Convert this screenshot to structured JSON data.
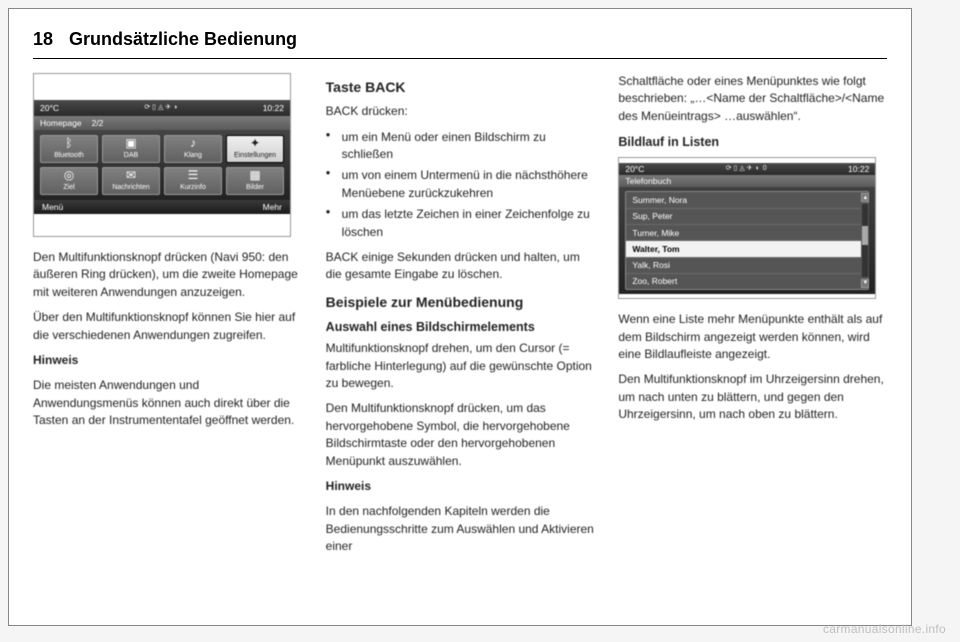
{
  "header": {
    "page_number": "18",
    "section": "Grundsätzliche Bedienung"
  },
  "watermark": "carmanualsonline.info",
  "col1": {
    "screen": {
      "status_temp": "20°C",
      "status_time": "10:22",
      "title": "Homepage",
      "pager": "2/2",
      "tiles": [
        {
          "icon": "ᛒ",
          "label": "Bluetooth"
        },
        {
          "icon": "▣",
          "label": "DAB"
        },
        {
          "icon": "♪",
          "label": "Klang"
        },
        {
          "icon": "✦",
          "label": "Einstellungen",
          "selected": true
        },
        {
          "icon": "◎",
          "label": "Ziel"
        },
        {
          "icon": "✉",
          "label": "Nachrichten"
        },
        {
          "icon": "☰",
          "label": "Kurzinfo"
        },
        {
          "icon": "▦",
          "label": "Bilder"
        }
      ],
      "footer_left": "Menü",
      "footer_right": "Mehr"
    },
    "p1": "Den Multifunktionsknopf drücken (Navi 950: den äußeren Ring drücken), um die zweite Homepage mit weiteren Anwendungen anzuzeigen.",
    "p2": "Über den Multifunktionsknopf können Sie hier auf die verschiedenen Anwendungen zugreifen.",
    "note_label": "Hinweis",
    "note_body": "Die meisten Anwendungen und Anwendungsmenüs können auch direkt über die Tasten an der Instrumententafel geöffnet werden."
  },
  "col2": {
    "h_back": "Taste BACK",
    "back_lead": "BACK drücken:",
    "back_items": [
      "um ein Menü oder einen Bildschirm zu schließen",
      "um von einem Untermenü in die nächsthöhere Menüebene zurückzukehren",
      "um das letzte Zeichen in einer Zeichenfolge zu löschen"
    ],
    "back_hold": "BACK einige Sekunden drücken und halten, um die gesamte Eingabe zu löschen.",
    "h_examples": "Beispiele zur Menübedienung",
    "h_select": "Auswahl eines Bildschirmelements",
    "p_sel1": "Multifunktionsknopf drehen, um den Cursor (= farbliche Hinterlegung) auf die gewünschte Option zu bewegen.",
    "p_sel2": "Den Multifunktionsknopf drücken, um das hervorgehobene Symbol, die hervorgehobene Bildschirmtaste oder den hervorgehobenen Menüpunkt auszuwählen.",
    "note_label": "Hinweis",
    "note_body": "In den nachfolgenden Kapiteln werden die Bedienungsschritte zum Auswählen und Aktivieren einer"
  },
  "col3": {
    "cont": "Schaltfläche oder eines Menüpunktes wie folgt beschrieben: „…<Name der Schaltfläche>/<Name des Menüeintrags> …auswählen“.",
    "h_scroll": "Bildlauf in Listen",
    "screen": {
      "status_temp": "20°C",
      "status_time": "10:22",
      "title": "Telefonbuch",
      "badge": "0",
      "rows": [
        "Summer, Nora",
        "Sup, Peter",
        "Turner, Mike",
        "Walter, Tom",
        "Yalk, Rosi",
        "Zoo, Robert"
      ],
      "selected_index": 3
    },
    "p1": "Wenn eine Liste mehr Menüpunkte enthält als auf dem Bildschirm angezeigt werden können, wird eine Bildlaufleiste angezeigt.",
    "p2": "Den Multifunktionsknopf im Uhrzeigersinn drehen, um nach unten zu blättern, und gegen den Uhrzeigersinn, um nach oben zu blättern."
  }
}
